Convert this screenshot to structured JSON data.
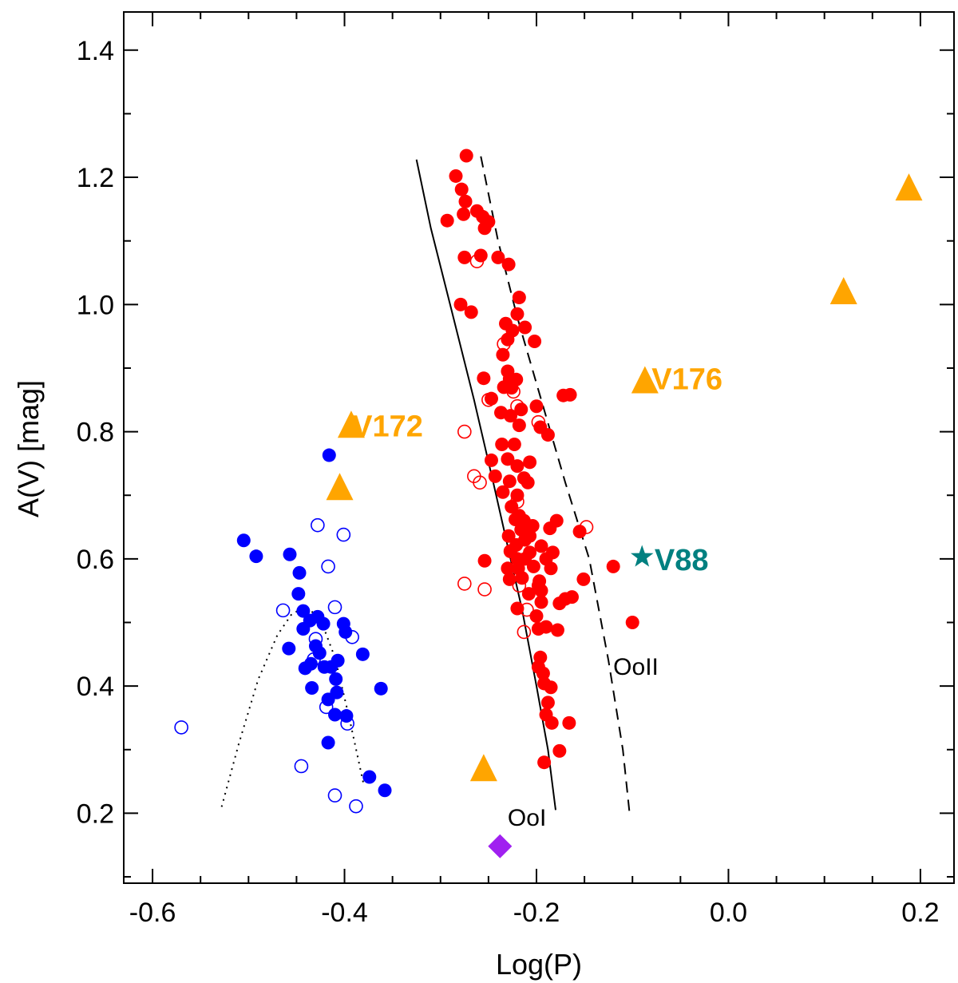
{
  "chart_data": {
    "type": "scatter",
    "xlabel": "Log(P)",
    "ylabel": "A(V) [mag]",
    "xlim": [
      -0.63,
      0.235
    ],
    "ylim": [
      0.09,
      1.46
    ],
    "x_ticks": [
      -0.6,
      -0.4,
      -0.2,
      0.0,
      0.2
    ],
    "x_tick_labels": [
      "-0.6",
      "-0.4",
      "-0.2",
      "0.0",
      "0.2"
    ],
    "y_ticks": [
      0.2,
      0.4,
      0.6,
      0.8,
      1.0,
      1.2,
      1.4
    ],
    "y_tick_labels": [
      "0.2",
      "0.4",
      "0.6",
      "0.8",
      "1.0",
      "1.2",
      "1.4"
    ],
    "colors": {
      "rrab": "#ff0000",
      "rrc": "#0000ff",
      "triangles": "#ffa500",
      "star": "#008080",
      "diamond": "#a020f0"
    },
    "series": [
      {
        "name": "RRc filled",
        "marker": "filled-circle",
        "color": "#0000ff",
        "points": [
          [
            -0.416,
            0.763
          ],
          [
            -0.505,
            0.629
          ],
          [
            -0.492,
            0.604
          ],
          [
            -0.457,
            0.607
          ],
          [
            -0.447,
            0.578
          ],
          [
            -0.448,
            0.545
          ],
          [
            -0.443,
            0.518
          ],
          [
            -0.443,
            0.49
          ],
          [
            -0.436,
            0.503
          ],
          [
            -0.428,
            0.509
          ],
          [
            -0.422,
            0.498
          ],
          [
            -0.458,
            0.459
          ],
          [
            -0.43,
            0.463
          ],
          [
            -0.426,
            0.452
          ],
          [
            -0.441,
            0.428
          ],
          [
            -0.435,
            0.435
          ],
          [
            -0.421,
            0.43
          ],
          [
            -0.414,
            0.43
          ],
          [
            -0.407,
            0.44
          ],
          [
            -0.401,
            0.498
          ],
          [
            -0.399,
            0.485
          ],
          [
            -0.381,
            0.45
          ],
          [
            -0.409,
            0.411
          ],
          [
            -0.434,
            0.397
          ],
          [
            -0.417,
            0.379
          ],
          [
            -0.41,
            0.355
          ],
          [
            -0.398,
            0.353
          ],
          [
            -0.362,
            0.396
          ],
          [
            -0.417,
            0.311
          ],
          [
            -0.374,
            0.257
          ],
          [
            -0.358,
            0.236
          ],
          [
            -0.408,
            0.39
          ]
        ]
      },
      {
        "name": "RRc open",
        "marker": "open-circle",
        "color": "#0000ff",
        "points": [
          [
            -0.57,
            0.335
          ],
          [
            -0.428,
            0.653
          ],
          [
            -0.401,
            0.638
          ],
          [
            -0.417,
            0.588
          ],
          [
            -0.464,
            0.519
          ],
          [
            -0.41,
            0.524
          ],
          [
            -0.392,
            0.477
          ],
          [
            -0.43,
            0.474
          ],
          [
            -0.432,
            0.442
          ],
          [
            -0.419,
            0.367
          ],
          [
            -0.397,
            0.341
          ],
          [
            -0.445,
            0.274
          ],
          [
            -0.41,
            0.228
          ],
          [
            -0.388,
            0.211
          ]
        ]
      },
      {
        "name": "RRab filled",
        "marker": "filled-circle",
        "color": "#ff0000",
        "points": [
          [
            -0.273,
            1.234
          ],
          [
            -0.284,
            1.202
          ],
          [
            -0.278,
            1.181
          ],
          [
            -0.274,
            1.162
          ],
          [
            -0.276,
            1.142
          ],
          [
            -0.262,
            1.147
          ],
          [
            -0.256,
            1.138
          ],
          [
            -0.25,
            1.13
          ],
          [
            -0.254,
            1.12
          ],
          [
            -0.293,
            1.132
          ],
          [
            -0.275,
            1.074
          ],
          [
            -0.258,
            1.077
          ],
          [
            -0.24,
            1.074
          ],
          [
            -0.229,
            1.063
          ],
          [
            -0.218,
            1.011
          ],
          [
            -0.22,
            0.985
          ],
          [
            -0.232,
            0.97
          ],
          [
            -0.212,
            0.964
          ],
          [
            -0.279,
            1.0
          ],
          [
            -0.268,
            0.988
          ],
          [
            -0.225,
            0.959
          ],
          [
            -0.23,
            0.945
          ],
          [
            -0.202,
            0.942
          ],
          [
            -0.235,
            0.921
          ],
          [
            -0.255,
            0.884
          ],
          [
            -0.23,
            0.895
          ],
          [
            -0.228,
            0.883
          ],
          [
            -0.221,
            0.882
          ],
          [
            -0.226,
            0.869
          ],
          [
            -0.234,
            0.87
          ],
          [
            -0.172,
            0.857
          ],
          [
            -0.165,
            0.858
          ],
          [
            -0.247,
            0.852
          ],
          [
            -0.237,
            0.83
          ],
          [
            -0.2,
            0.84
          ],
          [
            -0.216,
            0.835
          ],
          [
            -0.227,
            0.825
          ],
          [
            -0.218,
            0.81
          ],
          [
            -0.196,
            0.807
          ],
          [
            -0.188,
            0.795
          ],
          [
            -0.223,
            0.78
          ],
          [
            -0.236,
            0.78
          ],
          [
            -0.247,
            0.755
          ],
          [
            -0.23,
            0.757
          ],
          [
            -0.22,
            0.746
          ],
          [
            -0.207,
            0.752
          ],
          [
            -0.243,
            0.73
          ],
          [
            -0.213,
            0.727
          ],
          [
            -0.228,
            0.722
          ],
          [
            -0.209,
            0.72
          ],
          [
            -0.235,
            0.705
          ],
          [
            -0.22,
            0.7
          ],
          [
            -0.226,
            0.682
          ],
          [
            -0.218,
            0.668
          ],
          [
            -0.222,
            0.662
          ],
          [
            -0.213,
            0.66
          ],
          [
            -0.179,
            0.66
          ],
          [
            -0.216,
            0.646
          ],
          [
            -0.204,
            0.652
          ],
          [
            -0.186,
            0.648
          ],
          [
            -0.155,
            0.643
          ],
          [
            -0.229,
            0.636
          ],
          [
            -0.207,
            0.636
          ],
          [
            -0.212,
            0.63
          ],
          [
            -0.221,
            0.622
          ],
          [
            -0.195,
            0.62
          ],
          [
            -0.227,
            0.612
          ],
          [
            -0.207,
            0.61
          ],
          [
            -0.183,
            0.61
          ],
          [
            -0.22,
            0.6
          ],
          [
            -0.212,
            0.6
          ],
          [
            -0.19,
            0.6
          ],
          [
            -0.254,
            0.597
          ],
          [
            -0.23,
            0.585
          ],
          [
            -0.219,
            0.585
          ],
          [
            -0.203,
            0.588
          ],
          [
            -0.185,
            0.585
          ],
          [
            -0.12,
            0.588
          ],
          [
            -0.215,
            0.57
          ],
          [
            -0.228,
            0.568
          ],
          [
            -0.197,
            0.565
          ],
          [
            -0.198,
            0.558
          ],
          [
            -0.151,
            0.568
          ],
          [
            -0.195,
            0.55
          ],
          [
            -0.208,
            0.545
          ],
          [
            -0.17,
            0.537
          ],
          [
            -0.176,
            0.53
          ],
          [
            -0.163,
            0.54
          ],
          [
            -0.195,
            0.532
          ],
          [
            -0.2,
            0.51
          ],
          [
            -0.22,
            0.522
          ],
          [
            -0.198,
            0.49
          ],
          [
            -0.19,
            0.493
          ],
          [
            -0.178,
            0.488
          ],
          [
            -0.1,
            0.5
          ],
          [
            -0.196,
            0.445
          ],
          [
            -0.198,
            0.43
          ],
          [
            -0.193,
            0.42
          ],
          [
            -0.192,
            0.404
          ],
          [
            -0.185,
            0.398
          ],
          [
            -0.188,
            0.374
          ],
          [
            -0.19,
            0.355
          ],
          [
            -0.184,
            0.342
          ],
          [
            -0.166,
            0.342
          ],
          [
            -0.176,
            0.298
          ],
          [
            -0.192,
            0.28
          ]
        ]
      },
      {
        "name": "RRab open",
        "marker": "open-circle",
        "color": "#ff0000",
        "points": [
          [
            -0.262,
            1.068
          ],
          [
            -0.234,
            0.938
          ],
          [
            -0.224,
            0.863
          ],
          [
            -0.25,
            0.85
          ],
          [
            -0.22,
            0.84
          ],
          [
            -0.198,
            0.815
          ],
          [
            -0.275,
            0.8
          ],
          [
            -0.265,
            0.73
          ],
          [
            -0.259,
            0.72
          ],
          [
            -0.22,
            0.69
          ],
          [
            -0.148,
            0.65
          ],
          [
            -0.227,
            0.612
          ],
          [
            -0.275,
            0.561
          ],
          [
            -0.254,
            0.552
          ],
          [
            -0.218,
            0.558
          ],
          [
            -0.21,
            0.52
          ],
          [
            -0.213,
            0.485
          ]
        ]
      },
      {
        "name": "Other variables",
        "marker": "triangle",
        "color": "#ffa500",
        "points": [
          [
            0.188,
            1.181
          ],
          [
            0.12,
            1.018
          ],
          [
            -0.087,
            0.878
          ],
          [
            -0.393,
            0.808
          ],
          [
            -0.405,
            0.71
          ],
          [
            -0.255,
            0.268
          ]
        ]
      },
      {
        "name": "V88",
        "marker": "star",
        "color": "#008080",
        "points": [
          [
            -0.09,
            0.603
          ]
        ]
      },
      {
        "name": "Diamond",
        "marker": "diamond",
        "color": "#a020f0",
        "points": [
          [
            -0.238,
            0.148
          ]
        ]
      }
    ],
    "curves": [
      {
        "name": "OoI",
        "style": "solid",
        "points": [
          [
            -0.325,
            1.228
          ],
          [
            -0.31,
            1.12
          ],
          [
            -0.29,
            1.0
          ],
          [
            -0.265,
            0.85
          ],
          [
            -0.245,
            0.72
          ],
          [
            -0.23,
            0.62
          ],
          [
            -0.215,
            0.52
          ],
          [
            -0.2,
            0.4
          ],
          [
            -0.188,
            0.3
          ],
          [
            -0.18,
            0.205
          ]
        ]
      },
      {
        "name": "OoII",
        "style": "dashed",
        "points": [
          [
            -0.258,
            1.233
          ],
          [
            -0.24,
            1.1
          ],
          [
            -0.22,
            0.98
          ],
          [
            -0.195,
            0.85
          ],
          [
            -0.17,
            0.72
          ],
          [
            -0.145,
            0.6
          ],
          [
            -0.125,
            0.44
          ],
          [
            -0.11,
            0.3
          ],
          [
            -0.103,
            0.2
          ]
        ]
      },
      {
        "name": "RRc locus",
        "style": "dotted",
        "points": [
          [
            -0.528,
            0.21
          ],
          [
            -0.51,
            0.31
          ],
          [
            -0.49,
            0.41
          ],
          [
            -0.47,
            0.48
          ],
          [
            -0.455,
            0.513
          ],
          [
            -0.44,
            0.525
          ],
          [
            -0.425,
            0.505
          ],
          [
            -0.41,
            0.445
          ],
          [
            -0.395,
            0.35
          ],
          [
            -0.38,
            0.245
          ]
        ]
      }
    ],
    "annotations": [
      {
        "text": "V172",
        "x": -0.392,
        "y": 0.81,
        "color": "#ffa500"
      },
      {
        "text": "V176",
        "x": -0.08,
        "y": 0.884,
        "color": "#ffa500"
      },
      {
        "text": "V88",
        "x": -0.077,
        "y": 0.6,
        "color": "#008080"
      },
      {
        "text": "OoI",
        "x": -0.23,
        "y": 0.193,
        "color": "#000000"
      },
      {
        "text": "OoII",
        "x": -0.12,
        "y": 0.43,
        "color": "#000000"
      }
    ]
  }
}
